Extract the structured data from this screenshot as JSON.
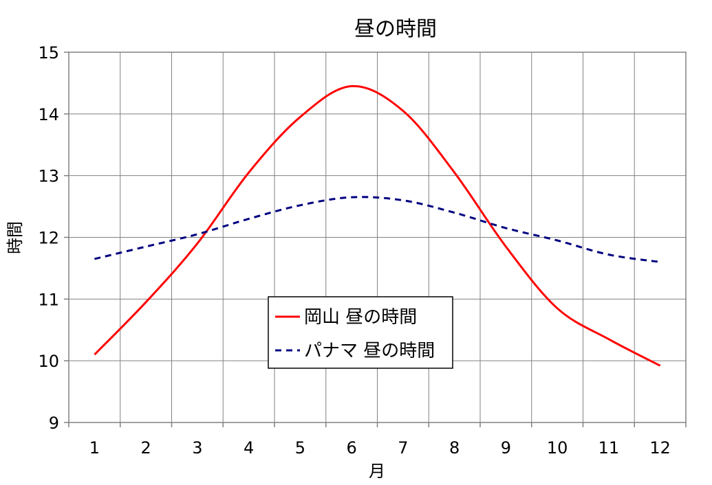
{
  "chart_data": {
    "type": "line",
    "title": "昼の時間",
    "xlabel": "月",
    "ylabel": "時間",
    "x": [
      1,
      2,
      3,
      4,
      5,
      6,
      7,
      8,
      9,
      10,
      11,
      12
    ],
    "x_tick_labels": [
      "1",
      "2",
      "3",
      "4",
      "5",
      "6",
      "7",
      "8",
      "9",
      "10",
      "11",
      "12"
    ],
    "y_tick_labels": [
      "9",
      "10",
      "11",
      "12",
      "13",
      "14",
      "15"
    ],
    "xlim": [
      0.5,
      12.5
    ],
    "ylim": [
      9,
      15
    ],
    "y_ticks": [
      9,
      10,
      11,
      12,
      13,
      14,
      15
    ],
    "grid": true,
    "legend_position": "center-bottom",
    "series": [
      {
        "name": "岡山 昼の時間",
        "color": "#ff0000",
        "line_style": "solid",
        "values": [
          10.1,
          10.95,
          11.9,
          13.05,
          13.95,
          14.45,
          14.05,
          13.05,
          11.85,
          10.85,
          10.35,
          9.92
        ]
      },
      {
        "name": "パナマ 昼の時間",
        "color": "#000080",
        "line_style": "dashed",
        "values": [
          11.65,
          11.85,
          12.05,
          12.3,
          12.52,
          12.65,
          12.6,
          12.4,
          12.15,
          11.95,
          11.72,
          11.6
        ]
      }
    ]
  }
}
